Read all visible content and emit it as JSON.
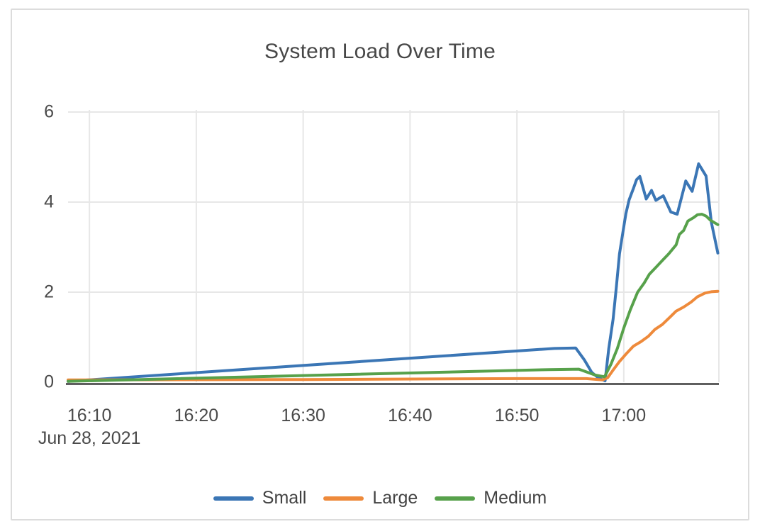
{
  "chart_data": {
    "type": "line",
    "title": "System Load Over Time",
    "grid": true,
    "legend_position": "bottom",
    "x_axis": {
      "unit": "minutes after 16:00 on Jun 28, 2021",
      "range_minutes": [
        8,
        68.9
      ],
      "tick_minutes": [
        10,
        20,
        30,
        40,
        50,
        60
      ],
      "tick_labels": [
        "16:10",
        "16:20",
        "16:30",
        "16:40",
        "16:50",
        "17:00"
      ],
      "date_label": "Jun 28, 2021"
    },
    "y_axis": {
      "range": [
        0,
        6
      ],
      "ticks": [
        0,
        2,
        4,
        6
      ]
    },
    "colors": {
      "grid": "#e7e7e7",
      "axis_baseline": "#3d3d3d",
      "text": "#4a4a4a"
    },
    "series": [
      {
        "name": "Small",
        "color": "#3b76b5",
        "points": [
          [
            8,
            0.02
          ],
          [
            53.5,
            0.75
          ],
          [
            55.5,
            0.76
          ],
          [
            56.3,
            0.5
          ],
          [
            57.0,
            0.22
          ],
          [
            57.6,
            0.1
          ],
          [
            58.25,
            0.03
          ],
          [
            58.6,
            0.75
          ],
          [
            59.0,
            1.4
          ],
          [
            59.3,
            2.1
          ],
          [
            59.6,
            2.85
          ],
          [
            59.9,
            3.3
          ],
          [
            60.2,
            3.75
          ],
          [
            60.5,
            4.05
          ],
          [
            60.9,
            4.3
          ],
          [
            61.2,
            4.5
          ],
          [
            61.5,
            4.57
          ],
          [
            62.1,
            4.07
          ],
          [
            62.6,
            4.26
          ],
          [
            63.0,
            4.04
          ],
          [
            63.7,
            4.14
          ],
          [
            64.4,
            3.78
          ],
          [
            65.0,
            3.73
          ],
          [
            65.8,
            4.47
          ],
          [
            66.4,
            4.24
          ],
          [
            67.0,
            4.85
          ],
          [
            67.7,
            4.58
          ],
          [
            68.2,
            3.55
          ],
          [
            68.8,
            2.87
          ]
        ]
      },
      {
        "name": "Large",
        "color": "#ee8a3b",
        "points": [
          [
            8,
            0.05
          ],
          [
            30,
            0.06
          ],
          [
            50,
            0.08
          ],
          [
            56.5,
            0.08
          ],
          [
            58.0,
            0.05
          ],
          [
            58.5,
            0.1
          ],
          [
            59.0,
            0.27
          ],
          [
            59.6,
            0.46
          ],
          [
            60.3,
            0.65
          ],
          [
            60.9,
            0.8
          ],
          [
            61.6,
            0.9
          ],
          [
            62.3,
            1.02
          ],
          [
            62.9,
            1.17
          ],
          [
            63.6,
            1.28
          ],
          [
            64.3,
            1.44
          ],
          [
            64.9,
            1.58
          ],
          [
            65.6,
            1.67
          ],
          [
            66.3,
            1.78
          ],
          [
            66.9,
            1.9
          ],
          [
            67.6,
            1.98
          ],
          [
            68.2,
            2.01
          ],
          [
            68.8,
            2.02
          ]
        ]
      },
      {
        "name": "Medium",
        "color": "#57a14b",
        "points": [
          [
            8,
            0.02
          ],
          [
            53,
            0.28
          ],
          [
            55.8,
            0.29
          ],
          [
            57.3,
            0.16
          ],
          [
            58.2,
            0.12
          ],
          [
            58.8,
            0.4
          ],
          [
            59.4,
            0.75
          ],
          [
            60.0,
            1.2
          ],
          [
            60.6,
            1.6
          ],
          [
            61.3,
            2.0
          ],
          [
            61.9,
            2.2
          ],
          [
            62.4,
            2.4
          ],
          [
            63.0,
            2.55
          ],
          [
            63.6,
            2.7
          ],
          [
            64.2,
            2.85
          ],
          [
            64.9,
            3.05
          ],
          [
            65.2,
            3.28
          ],
          [
            65.6,
            3.37
          ],
          [
            66.0,
            3.58
          ],
          [
            66.5,
            3.65
          ],
          [
            66.9,
            3.72
          ],
          [
            67.3,
            3.73
          ],
          [
            67.7,
            3.69
          ],
          [
            68.1,
            3.6
          ],
          [
            68.8,
            3.5
          ]
        ]
      }
    ]
  }
}
